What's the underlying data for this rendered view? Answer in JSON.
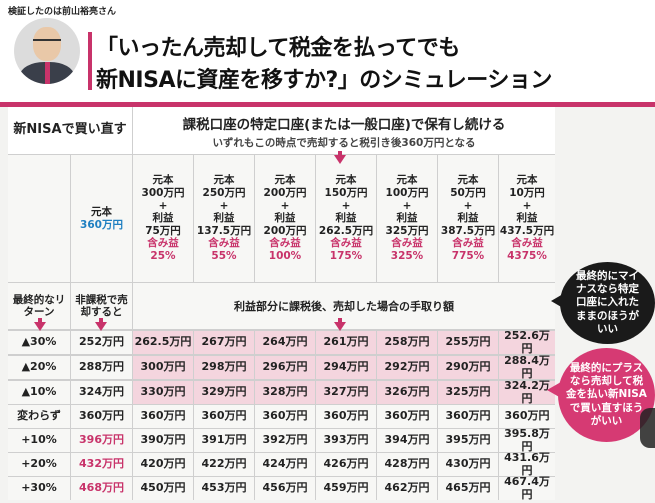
{
  "header": {
    "supervisor": "検証したのは前山裕亮さん",
    "title_line1": "「いったん売却して税金を払ってでも",
    "title_line2": "新NISAに資産を移すか?」のシミュレーション"
  },
  "left_header": "新NISAで買い直す",
  "right_header": {
    "title": "課税口座の特定口座(または一般口座)で保有し続ける",
    "note": "いずれもこの時点で売却すると税引き後360万円となる"
  },
  "nisa_principal": {
    "label": "元本",
    "value": "360万円"
  },
  "columns": [
    {
      "principal_label": "元本",
      "principal": "300万円",
      "plus1": "+",
      "profit_label": "利益",
      "profit": "75万円",
      "gain_label": "含み益",
      "gain": "25%"
    },
    {
      "principal_label": "元本",
      "principal": "250万円",
      "plus1": "+",
      "profit_label": "利益",
      "profit": "137.5万円",
      "gain_label": "含み益",
      "gain": "55%"
    },
    {
      "principal_label": "元本",
      "principal": "200万円",
      "plus1": "+",
      "profit_label": "利益",
      "profit": "200万円",
      "gain_label": "含み益",
      "gain": "100%"
    },
    {
      "principal_label": "元本",
      "principal": "150万円",
      "plus1": "+",
      "profit_label": "利益",
      "profit": "262.5万円",
      "gain_label": "含み益",
      "gain": "175%"
    },
    {
      "principal_label": "元本",
      "principal": "100万円",
      "plus1": "+",
      "profit_label": "利益",
      "profit": "325万円",
      "gain_label": "含み益",
      "gain": "325%"
    },
    {
      "principal_label": "元本",
      "principal": "50万円",
      "plus1": "+",
      "profit_label": "利益",
      "profit": "387.5万円",
      "gain_label": "含み益",
      "gain": "775%"
    },
    {
      "principal_label": "元本",
      "principal": "10万円",
      "plus1": "+",
      "profit_label": "利益",
      "profit": "437.5万円",
      "gain_label": "含み益",
      "gain": "4375%"
    }
  ],
  "row_header_return": "最終的なリターン",
  "row_header_taxfree": "非課税で売却すると",
  "tax_note": "利益部分に課税後、売却した場合の手取り額",
  "rows": [
    {
      "ret": "▲30%",
      "nisa": "252万円",
      "vals": [
        "262.5万円",
        "267万円",
        "264万円",
        "261万円",
        "258万円",
        "255万円",
        "252.6万円"
      ]
    },
    {
      "ret": "▲20%",
      "nisa": "288万円",
      "vals": [
        "300万円",
        "298万円",
        "296万円",
        "294万円",
        "292万円",
        "290万円",
        "288.4万円"
      ]
    },
    {
      "ret": "▲10%",
      "nisa": "324万円",
      "vals": [
        "330万円",
        "329万円",
        "328万円",
        "327万円",
        "326万円",
        "325万円",
        "324.2万円"
      ]
    },
    {
      "ret": "変わらず",
      "nisa": "360万円",
      "vals": [
        "360万円",
        "360万円",
        "360万円",
        "360万円",
        "360万円",
        "360万円",
        "360万円"
      ]
    },
    {
      "ret": "+10%",
      "nisa": "396万円",
      "vals": [
        "390万円",
        "391万円",
        "392万円",
        "393万円",
        "394万円",
        "395万円",
        "395.8万円"
      ]
    },
    {
      "ret": "+20%",
      "nisa": "432万円",
      "vals": [
        "420万円",
        "422万円",
        "424万円",
        "426万円",
        "428万円",
        "430万円",
        "431.6万円"
      ]
    },
    {
      "ret": "+30%",
      "nisa": "468万円",
      "vals": [
        "450万円",
        "453万円",
        "456万円",
        "459万円",
        "462万円",
        "465万円",
        "467.4万円"
      ]
    }
  ],
  "bubble_black": "最終的にマイナスなら特定口座に入れたままのほうがいい",
  "bubble_pink": "最終的にプラスなら売却して税金を払い新NISAで買い直すほうがいい",
  "colors": {
    "accent": "#c8336a",
    "blue": "#1e7fc1",
    "highlight": "#f4d5de"
  }
}
